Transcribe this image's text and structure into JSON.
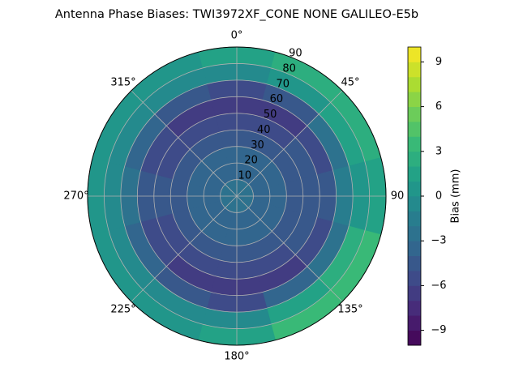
{
  "chart_data": {
    "type": "polar_contour",
    "title": "Antenna Phase Biases: TWI3972XF_CONE  NONE GALILEO-E5b",
    "theta": [
      0,
      30,
      60,
      90,
      120,
      150,
      180,
      210,
      240,
      270,
      300,
      330
    ],
    "r": [
      5,
      15,
      25,
      35,
      45,
      55,
      65,
      75,
      85
    ],
    "values": [
      [
        -3,
        -3.5,
        -4,
        -5,
        -6,
        -7,
        -6,
        -1,
        1
      ],
      [
        -3,
        -3.5,
        -4,
        -5,
        -6,
        -6.5,
        -5,
        0,
        2
      ],
      [
        -3,
        -3.5,
        -4,
        -4.5,
        -5,
        -5.5,
        -3,
        1,
        2
      ],
      [
        -3,
        -3.5,
        -4,
        -4.5,
        -5,
        -4.5,
        -2,
        0,
        1
      ],
      [
        -3,
        -3.5,
        -4,
        -4.5,
        -5,
        -5.5,
        -3,
        2,
        3
      ],
      [
        -3,
        -3.5,
        -4,
        -5,
        -6,
        -6.5,
        -4,
        1,
        3
      ],
      [
        -3,
        -3.5,
        -4,
        -5,
        -6,
        -7,
        -5.5,
        -1,
        1
      ],
      [
        -3,
        -3.5,
        -4,
        -5,
        -6,
        -6.5,
        -5,
        -1,
        0
      ],
      [
        -3,
        -3.5,
        -4,
        -4.5,
        -5.5,
        -6,
        -4,
        -1,
        0
      ],
      [
        -3,
        -3.5,
        -4,
        -4.5,
        -5,
        -5,
        -3,
        -1,
        0
      ],
      [
        -3,
        -3.5,
        -4,
        -5,
        -5.5,
        -6,
        -4,
        -1,
        0
      ],
      [
        -3,
        -3.5,
        -4,
        -5,
        -6,
        -6.5,
        -5,
        -1,
        0
      ]
    ],
    "rlim": [
      0,
      90
    ],
    "rticks": [
      10,
      20,
      30,
      40,
      50,
      60,
      70,
      80,
      90
    ],
    "thetaticks": [
      {
        "value": 0,
        "label": "0°"
      },
      {
        "value": 45,
        "label": "45°"
      },
      {
        "value": 90,
        "label": "90"
      },
      {
        "value": 135,
        "label": "135°"
      },
      {
        "value": 180,
        "label": "180°"
      },
      {
        "value": 225,
        "label": "225°"
      },
      {
        "value": 270,
        "label": "270°"
      },
      {
        "value": 315,
        "label": "315°"
      }
    ],
    "grid": true,
    "colormap": "viridis",
    "clim": [
      -10,
      10
    ],
    "cticks": [
      {
        "value": -9,
        "label": "−9"
      },
      {
        "value": -6,
        "label": "−6"
      },
      {
        "value": -3,
        "label": "−3"
      },
      0,
      3,
      6,
      9
    ],
    "colorbar_label": "Bias (mm)"
  }
}
